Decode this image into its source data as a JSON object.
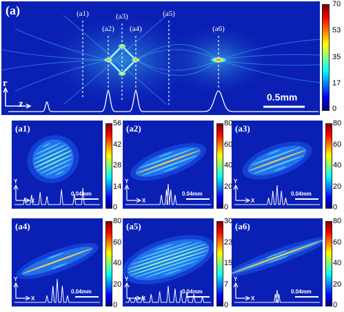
{
  "main": {
    "label": "(a)",
    "markers": [
      "(a1)",
      "(a2)",
      "(a3)",
      "(a4)",
      "(a5)",
      "(a6)"
    ],
    "axis_r": "r",
    "axis_z": "z",
    "scale_text": "0.5mm",
    "colorbar_ticks": [
      "70",
      "53",
      "35",
      "17",
      "0"
    ]
  },
  "subpanels": [
    {
      "label": "(a1)",
      "scale_text": "0.04mm",
      "axis_y": "Y",
      "axis_x": "X",
      "colorbar_ticks": [
        "56",
        "42",
        "28",
        "14",
        "0"
      ]
    },
    {
      "label": "(a2)",
      "scale_text": "0.04mm",
      "axis_y": "Y",
      "axis_x": "X",
      "colorbar_ticks": [
        "80",
        "60",
        "40",
        "20",
        "0"
      ]
    },
    {
      "label": "(a3)",
      "scale_text": "0.04mm",
      "axis_y": "Y",
      "axis_x": "X",
      "colorbar_ticks": [
        "80",
        "60",
        "40",
        "20",
        "0"
      ]
    },
    {
      "label": "(a4)",
      "scale_text": "0.04mm",
      "axis_y": "Y",
      "axis_x": "X",
      "colorbar_ticks": [
        "80",
        "60",
        "40",
        "20",
        "0"
      ]
    },
    {
      "label": "(a5)",
      "scale_text": "0.04mm",
      "axis_y": "Y",
      "axis_x": "X",
      "colorbar_ticks": [
        "30",
        "23",
        "15",
        "7",
        "0"
      ]
    },
    {
      "label": "(a6)",
      "scale_text": "0.04mm",
      "axis_y": "Y",
      "axis_x": "X",
      "colorbar_ticks": [
        "80",
        "60",
        "40",
        "20",
        "0"
      ]
    }
  ],
  "colors": {
    "background": "#0a1fb4",
    "jet": [
      "#00007f",
      "#0000ff",
      "#007fff",
      "#00ffff",
      "#7fff7f",
      "#ffff00",
      "#ff7f00",
      "#ff0000",
      "#7f0000"
    ]
  }
}
